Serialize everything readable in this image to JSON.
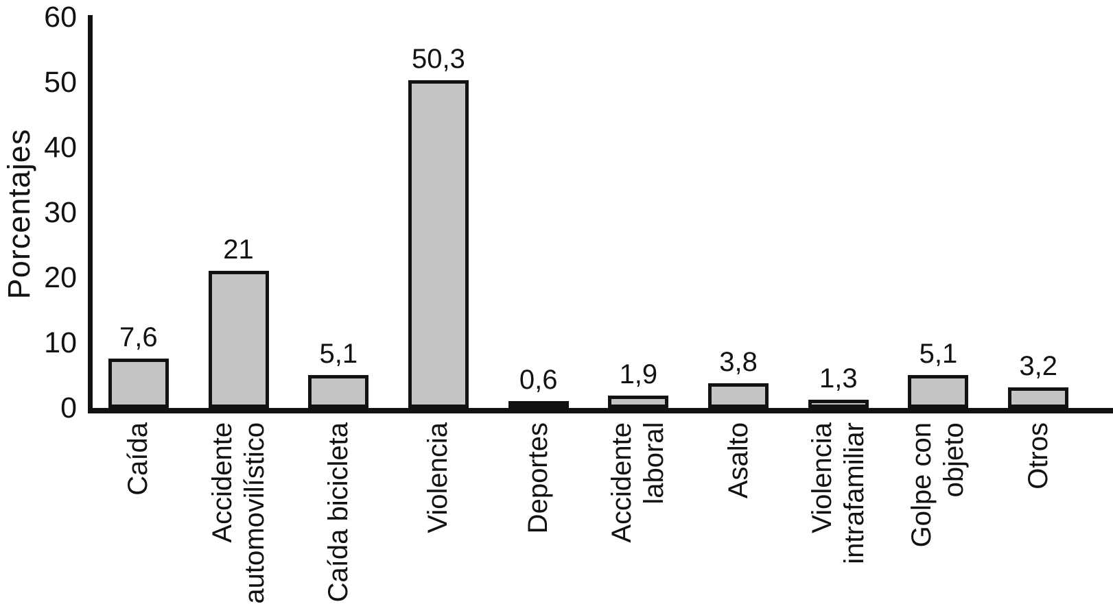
{
  "figure": {
    "background": "#ffffff",
    "ink_color": "#121212"
  },
  "chart_data": {
    "type": "bar",
    "title": "",
    "xlabel": "",
    "ylabel": "Porcentajes",
    "categories": [
      "Caída",
      "Accidente automovilístico",
      "Caída bicicleta",
      "Violencia",
      "Deportes",
      "Accidente laboral",
      "Asalto",
      "Violencia intrafamiliar",
      "Golpe con objeto",
      "Otros"
    ],
    "category_display": [
      "Caída",
      "Accidente\nautomovilístico",
      "Caída bicicleta",
      "Violencia",
      "Deportes",
      "Accidente\nlaboral",
      "Asalto",
      "Violencia\nintrafamiliar",
      "Golpe con\nobjeto",
      "Otros"
    ],
    "values": [
      7.6,
      21,
      5.1,
      50.3,
      0.6,
      1.9,
      3.8,
      1.3,
      5.1,
      3.2
    ],
    "value_labels": [
      "7,6",
      "21",
      "5,1",
      "50,3",
      "0,6",
      "1,9",
      "3,8",
      "1,3",
      "5,1",
      "3,2"
    ],
    "ylim": [
      0,
      60
    ],
    "yticks": [
      0,
      10,
      20,
      30,
      40,
      50,
      60
    ],
    "ytick_labels": [
      "0",
      "10",
      "20",
      "30",
      "40",
      "50",
      "60"
    ],
    "grid": false,
    "legend_position": "none",
    "bar_color": "#c5c5c5",
    "bar_border_color": "#121212",
    "category_labels_rotation_deg": 90,
    "value_label_position": "above-bar"
  }
}
